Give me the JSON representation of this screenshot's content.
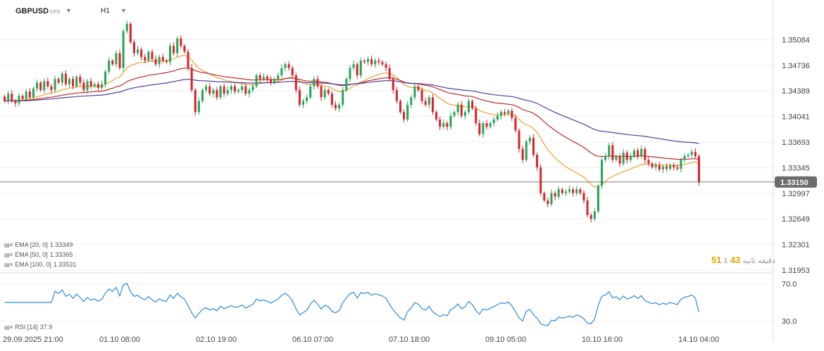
{
  "header": {
    "symbol": "GBPUSD",
    "symbol_type": "CFD",
    "timeframe": "H1",
    "caret_icon": "caret-down-icon"
  },
  "indicators": [
    {
      "label": "EMA [20, 0]",
      "value": "1.33349",
      "color": "#f0a030"
    },
    {
      "label": "EMA [50, 0]",
      "value": "1.33365",
      "color": "#c0282d"
    },
    {
      "label": "EMA [100, 0]",
      "value": "1.33531",
      "color": "#4b3f9e"
    }
  ],
  "rsi_label": {
    "label": "RSI [14]",
    "value": "37.9",
    "color": "#2b8ad8"
  },
  "countdown": {
    "a": "51",
    "b": "43",
    "c": "1",
    "text": "دقیقه ثانیه"
  },
  "colors": {
    "up": "#26a65b",
    "down": "#d9252a",
    "price_line": "#555555",
    "price_tag": "#6b6b6b",
    "rsi": "#2b8ad8"
  },
  "chart_data": {
    "type": "candlestick",
    "symbol": "GBPUSD",
    "last_price": 1.3315,
    "last_price_label": "1.33150",
    "y_ticks": [
      "1.35084",
      "1.34736",
      "1.34389",
      "1.34041",
      "1.33693",
      "1.33345",
      "1.32997",
      "1.32649",
      "1.32301",
      "1.31953"
    ],
    "ylim": [
      1.31953,
      1.35432
    ],
    "x_ticks": [
      "29.09.2025 21:00",
      "01.10 08:00",
      "02.10 19:00",
      "06.10 07:00",
      "07.10 18:00",
      "09.10 05:00",
      "10.10 16:00",
      "14.10 04:00"
    ],
    "closes": [
      1.3425,
      1.3435,
      1.3425,
      1.3422,
      1.3432,
      1.3428,
      1.3438,
      1.343,
      1.3442,
      1.345,
      1.344,
      1.3452,
      1.3445,
      1.344,
      1.3455,
      1.345,
      1.3462,
      1.3448,
      1.3455,
      1.3445,
      1.3458,
      1.345,
      1.344,
      1.3452,
      1.3445,
      1.3448,
      1.3443,
      1.3448,
      1.3465,
      1.348,
      1.3475,
      1.349,
      1.347,
      1.352,
      1.353,
      1.3505,
      1.349,
      1.3495,
      1.3485,
      1.348,
      1.3492,
      1.3482,
      1.3475,
      1.3485,
      1.348,
      1.3478,
      1.35,
      1.349,
      1.351,
      1.35,
      1.3492,
      1.347,
      1.344,
      1.341,
      1.3425,
      1.344,
      1.3445,
      1.3435,
      1.344,
      1.343,
      1.3445,
      1.3435,
      1.344,
      1.3445,
      1.3438,
      1.344,
      1.3445,
      1.3435,
      1.344,
      1.3445,
      1.346,
      1.3455,
      1.3458,
      1.3455,
      1.345,
      1.3455,
      1.346,
      1.347,
      1.3475,
      1.347,
      1.346,
      1.344,
      1.342,
      1.3425,
      1.343,
      1.3445,
      1.3455,
      1.3445,
      1.343,
      1.344,
      1.3435,
      1.342,
      1.3415,
      1.342,
      1.344,
      1.3455,
      1.347,
      1.3475,
      1.346,
      1.348,
      1.3478,
      1.3482,
      1.3475,
      1.348,
      1.3478,
      1.3475,
      1.347,
      1.3455,
      1.344,
      1.3425,
      1.341,
      1.34,
      1.342,
      1.343,
      1.3445,
      1.344,
      1.3425,
      1.342,
      1.343,
      1.341,
      1.34,
      1.339,
      1.3395,
      1.339,
      1.3405,
      1.341,
      1.342,
      1.3405,
      1.341,
      1.3425,
      1.3415,
      1.3395,
      1.338,
      1.3395,
      1.339,
      1.3395,
      1.34,
      1.3405,
      1.341,
      1.3408,
      1.3412,
      1.3402,
      1.3385,
      1.336,
      1.3345,
      1.337,
      1.3375,
      1.3352,
      1.3335,
      1.33,
      1.329,
      1.3285,
      1.33,
      1.3295,
      1.3305,
      1.33,
      1.3302,
      1.3305,
      1.33,
      1.3305,
      1.33,
      1.329,
      1.327,
      1.3265,
      1.3275,
      1.331,
      1.3345,
      1.335,
      1.3365,
      1.3345,
      1.335,
      1.334,
      1.3355,
      1.3345,
      1.335,
      1.3358,
      1.335,
      1.336,
      1.3345,
      1.334,
      1.3335,
      1.3338,
      1.3332,
      1.3336,
      1.3333,
      1.3338,
      1.3335,
      1.3333,
      1.3345,
      1.335,
      1.3352,
      1.3356,
      1.335,
      1.3315
    ],
    "ema": [
      {
        "name": "EMA [20, 0]",
        "period": 20,
        "value": 1.33349
      },
      {
        "name": "EMA [50, 0]",
        "period": 50,
        "value": 1.33365
      },
      {
        "name": "EMA [100, 0]",
        "period": 100,
        "value": 1.33531
      }
    ],
    "rsi": {
      "name": "RSI [14]",
      "value": 37.9,
      "y_ticks": [
        "70.0",
        "30.0"
      ],
      "ylim": [
        20,
        80
      ]
    }
  }
}
